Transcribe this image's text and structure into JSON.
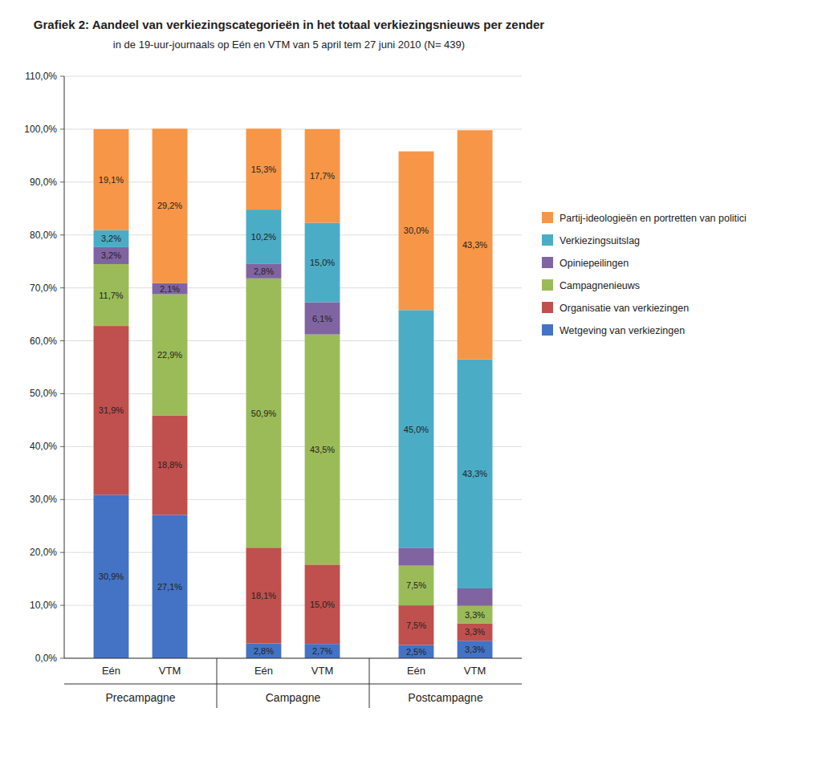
{
  "chart_data": {
    "type": "bar",
    "stacked": true,
    "title": "Grafiek 2: Aandeel van verkiezingscategorieën in het totaal verkiezingsnieuws per zender",
    "subtitle": "in de 19-uur-journaals op Eén en VTM van 5 april tem 27 juni 2010 (N= 439)",
    "group_labels": [
      "Precampagne",
      "Campagne",
      "Postcampagne"
    ],
    "categories": [
      "Eén",
      "VTM",
      "Eén",
      "VTM",
      "Eén",
      "VTM"
    ],
    "series": [
      {
        "name": "Wetgeving van verkiezingen",
        "color": "#4472C4",
        "values": [
          30.9,
          27.1,
          2.8,
          2.7,
          2.5,
          3.3
        ],
        "value_labels": [
          "30,9%",
          "27,1%",
          "2,8%",
          "2,7%",
          "2,5%",
          "3,3%"
        ]
      },
      {
        "name": "Organisatie van verkiezingen",
        "color": "#C0504D",
        "values": [
          31.9,
          18.8,
          18.1,
          15.0,
          7.5,
          3.3
        ],
        "value_labels": [
          "31,9%",
          "18,8%",
          "18,1%",
          "15,0%",
          "7,5%",
          "3,3%"
        ]
      },
      {
        "name": "Campagnenieuws",
        "color": "#9BBB59",
        "values": [
          11.7,
          22.9,
          50.9,
          43.5,
          7.5,
          3.3
        ],
        "value_labels": [
          "11,7%",
          "22,9%",
          "50,9%",
          "43,5%",
          "7,5%",
          "3,3%"
        ]
      },
      {
        "name": "Opiniepeilingen",
        "color": "#8064A2",
        "values": [
          3.2,
          2.1,
          2.8,
          6.1,
          3.3,
          3.3
        ],
        "value_labels": [
          "3,2%",
          "2,1%",
          "2,8%",
          "6,1%",
          null,
          null
        ]
      },
      {
        "name": "Verkiezingsuitslag",
        "color": "#4BACC6",
        "values": [
          3.2,
          0.0,
          10.2,
          15.0,
          45.0,
          43.3
        ],
        "value_labels": [
          "3,2%",
          null,
          "10,2%",
          "15,0%",
          "45,0%",
          "43,3%"
        ]
      },
      {
        "name": "Partij-ideologieën en portretten van politici",
        "color": "#F79646",
        "values": [
          19.1,
          29.2,
          15.3,
          17.7,
          30.0,
          43.3
        ],
        "value_labels": [
          "19,1%",
          "29,2%",
          "15,3%",
          "17,7%",
          "30,0%",
          "43,3%"
        ]
      }
    ],
    "data_labels": true,
    "ylim": [
      0,
      110
    ],
    "yticks": [
      {
        "value": 0,
        "label": "0,0%"
      },
      {
        "value": 10,
        "label": "10,0%"
      },
      {
        "value": 20,
        "label": "20,0%"
      },
      {
        "value": 30,
        "label": "30,0%"
      },
      {
        "value": 40,
        "label": "40,0%"
      },
      {
        "value": 50,
        "label": "50,0%"
      },
      {
        "value": 60,
        "label": "60,0%"
      },
      {
        "value": 70,
        "label": "70,0%"
      },
      {
        "value": 80,
        "label": "80,0%"
      },
      {
        "value": 90,
        "label": "90,0%"
      },
      {
        "value": 100,
        "label": "100,0%"
      },
      {
        "value": 110,
        "label": "110,0%"
      }
    ],
    "grid": true,
    "legend": "right"
  }
}
